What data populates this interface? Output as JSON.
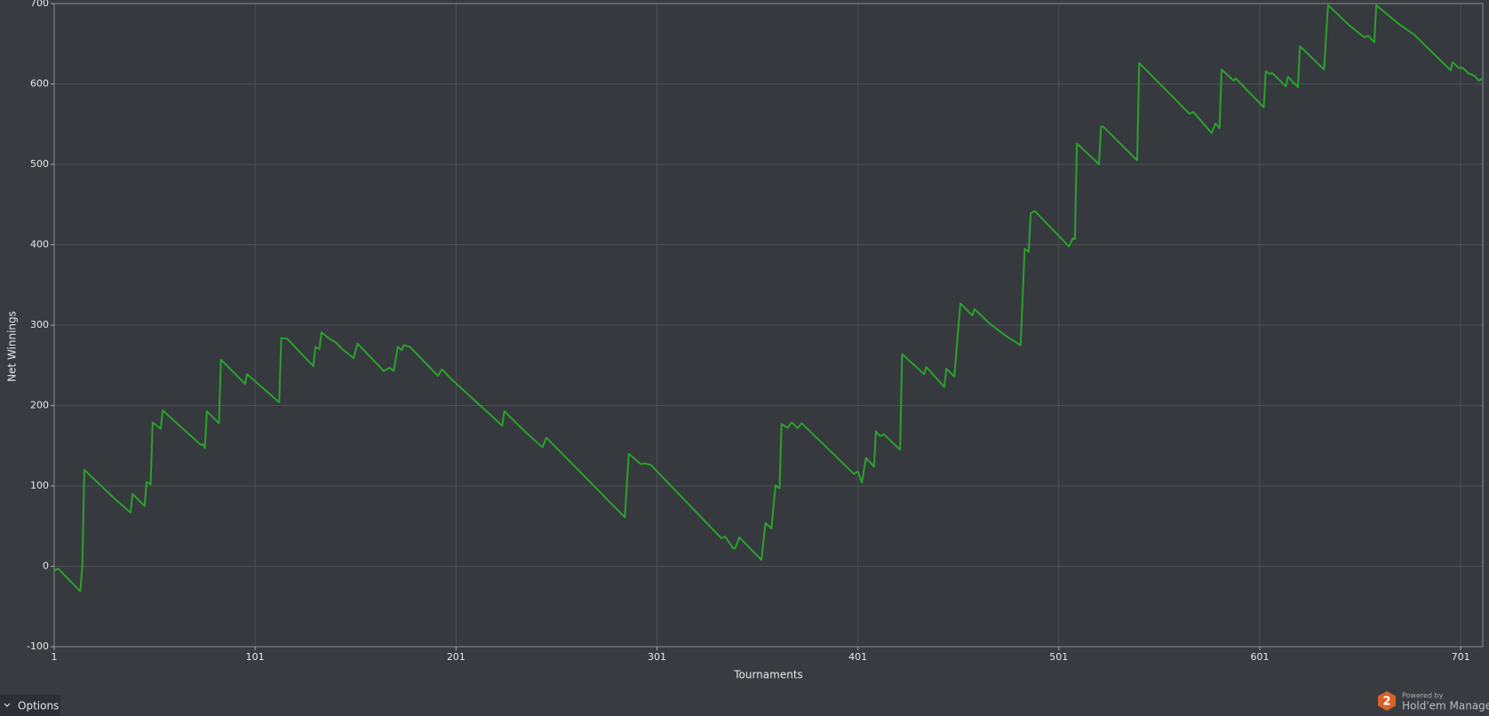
{
  "chart_data": {
    "type": "line",
    "xlabel": "Tournaments",
    "ylabel": "Net Winnings",
    "color": "#2aa12d",
    "grid": true,
    "xlim": [
      1,
      712
    ],
    "ylim": [
      -100,
      700
    ],
    "xticks": [
      1,
      101,
      201,
      301,
      401,
      501,
      601,
      701
    ],
    "yticks": [
      -100,
      0,
      100,
      200,
      300,
      400,
      500,
      600,
      700
    ],
    "x": [
      1,
      3,
      14,
      15,
      16,
      32,
      39,
      40,
      46,
      47,
      49,
      50,
      54,
      55,
      74,
      75,
      76,
      77,
      83,
      84,
      96,
      97,
      107,
      113,
      114,
      117,
      130,
      131,
      133,
      134,
      138,
      141,
      144,
      150,
      152,
      165,
      168,
      170,
      172,
      174,
      175,
      178,
      192,
      194,
      199,
      224,
      225,
      236,
      244,
      246,
      285,
      287,
      293,
      295,
      298,
      333,
      335,
      339,
      340,
      342,
      353,
      355,
      358,
      360,
      362,
      363,
      366,
      368,
      371,
      373,
      399,
      401,
      403,
      405,
      409,
      410,
      412,
      414,
      422,
      423,
      434,
      435,
      444,
      445,
      449,
      452,
      458,
      459,
      467,
      475,
      482,
      484,
      486,
      487,
      489,
      506,
      508,
      509,
      510,
      521,
      522,
      523,
      540,
      541,
      566,
      568,
      577,
      579,
      581,
      582,
      588,
      589,
      603,
      604,
      606,
      607,
      614,
      615,
      620,
      621,
      633,
      635,
      646,
      653,
      655,
      658,
      659,
      670,
      678,
      696,
      697,
      700,
      702,
      705,
      708,
      710,
      712
    ],
    "values": [
      -5,
      -3,
      -31,
      0,
      120,
      82,
      67,
      90,
      75,
      105,
      102,
      179,
      171,
      194,
      151,
      152,
      147,
      193,
      178,
      257,
      227,
      239,
      217,
      204,
      284,
      283,
      249,
      273,
      270,
      291,
      283,
      279,
      271,
      259,
      277,
      243,
      247,
      243,
      273,
      269,
      275,
      273,
      237,
      245,
      232,
      175,
      193,
      166,
      148,
      160,
      61,
      140,
      127,
      128,
      126,
      35,
      37,
      22,
      23,
      36,
      8,
      54,
      47,
      101,
      97,
      177,
      172,
      179,
      172,
      178,
      115,
      118,
      104,
      135,
      124,
      168,
      162,
      164,
      145,
      264,
      239,
      248,
      223,
      246,
      236,
      327,
      312,
      320,
      301,
      286,
      275,
      395,
      391,
      439,
      442,
      398,
      408,
      407,
      526,
      500,
      547,
      547,
      505,
      626,
      563,
      565,
      539,
      551,
      545,
      618,
      604,
      607,
      571,
      616,
      612,
      614,
      597,
      609,
      596,
      647,
      618,
      698,
      672,
      658,
      660,
      652,
      698,
      675,
      661,
      617,
      627,
      620,
      620,
      613,
      610,
      604,
      607
    ]
  },
  "ui": {
    "options_button": "Options",
    "brand": {
      "badge": "2",
      "powered": "Powered by",
      "name": "Hold'em Manager"
    }
  }
}
